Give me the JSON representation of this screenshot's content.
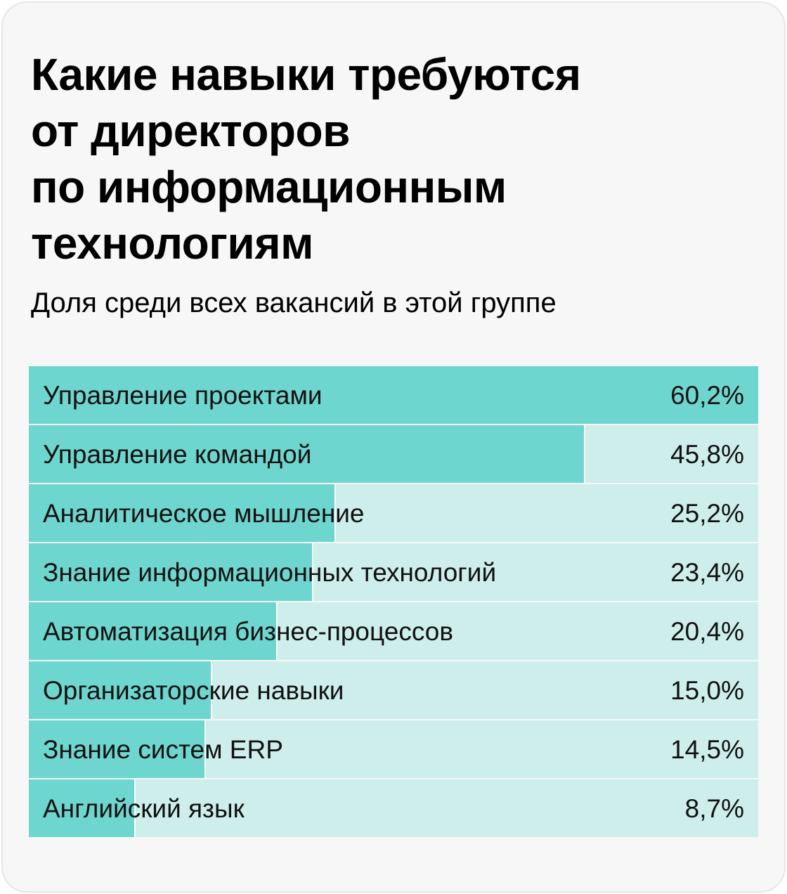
{
  "chart_data": {
    "type": "bar",
    "orientation": "horizontal",
    "title": "Какие навыки требуются от директоров по информационным технологиям",
    "title_lines": [
      "Какие навыки требуются",
      "от директоров",
      "по информационным",
      "технологиям"
    ],
    "subtitle": "Доля среди всех вакансий в этой группе",
    "categories": [
      "Управление проектами",
      "Управление командой",
      "Аналитическое мышление",
      "Знание информационных технологий",
      "Автоматизация бизнес-процессов",
      "Организаторские навыки",
      "Знание систем ERP",
      "Английский язык"
    ],
    "values": [
      60.2,
      45.8,
      25.2,
      23.4,
      20.4,
      15.0,
      14.5,
      8.7
    ],
    "value_labels": [
      "60,2%",
      "45,8%",
      "25,2%",
      "23,4%",
      "20,4%",
      "15,0%",
      "14,5%",
      "8,7%"
    ],
    "unit": "%",
    "colors": {
      "bar": "#6dd6ce",
      "track": "#cdeeea"
    }
  }
}
